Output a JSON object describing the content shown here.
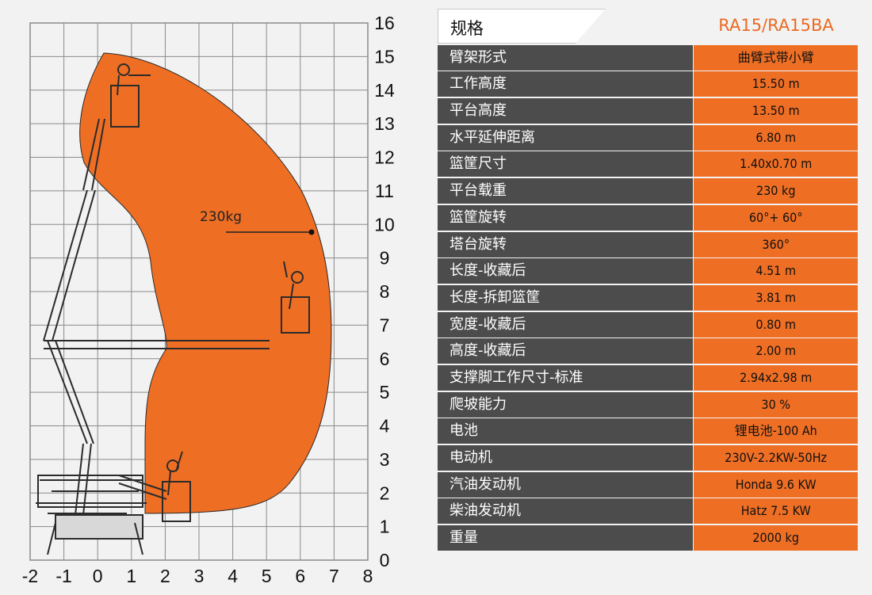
{
  "diagram": {
    "x_ticks": [
      "-2",
      "-1",
      "0",
      "1",
      "2",
      "3",
      "4",
      "5",
      "6",
      "7",
      "8"
    ],
    "y_ticks": [
      "0",
      "1",
      "2",
      "3",
      "4",
      "5",
      "6",
      "7",
      "8",
      "9",
      "10",
      "11",
      "12",
      "13",
      "14",
      "15",
      "16"
    ],
    "load_label": "230kg",
    "envelope_color": "#ee6e24"
  },
  "spec": {
    "header_label": "规格",
    "model": "RA15/RA15BA",
    "rows": [
      {
        "k": "臂架形式",
        "v": "曲臂式带小臂"
      },
      {
        "k": "工作高度",
        "v": "15.50 m"
      },
      {
        "k": "平台高度",
        "v": "13.50 m"
      },
      {
        "k": "水平延伸距离",
        "v": "6.80 m"
      },
      {
        "k": "篮筐尺寸",
        "v": "1.40x0.70 m"
      },
      {
        "k": "平台载重",
        "v": "230 kg"
      },
      {
        "k": "篮筐旋转",
        "v": "60°+ 60°"
      },
      {
        "k": "塔台旋转",
        "v": "360°"
      },
      {
        "k": "长度-收藏后",
        "v": "4.51 m"
      },
      {
        "k": "长度-拆卸篮筐",
        "v": "3.81 m"
      },
      {
        "k": "宽度-收藏后",
        "v": "0.80 m"
      },
      {
        "k": "高度-收藏后",
        "v": "2.00 m"
      },
      {
        "k": "支撑脚工作尺寸-标准",
        "v": "2.94x2.98 m"
      },
      {
        "k": "爬坡能力",
        "v": "30 %"
      },
      {
        "k": "电池",
        "v": "锂电池-100 Ah"
      },
      {
        "k": "电动机",
        "v": "230V-2.2KW-50Hz"
      },
      {
        "k": "汽油发动机",
        "v": "Honda  9.6 KW"
      },
      {
        "k": "柴油发动机",
        "v": "Hatz  7.5 KW"
      },
      {
        "k": "重量",
        "v": "2000 kg"
      }
    ]
  }
}
